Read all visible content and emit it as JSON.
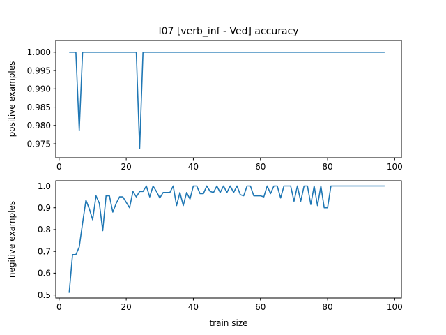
{
  "chart_data": [
    {
      "type": "line",
      "title": "I07 [verb_inf - Ved] accuracy",
      "xlabel": "",
      "ylabel": "positive examples",
      "xlim": [
        -1,
        102
      ],
      "ylim": [
        0.9712,
        1.0032
      ],
      "xticks": [
        0,
        20,
        40,
        60,
        80,
        100
      ],
      "xtick_labels": [
        "0",
        "20",
        "40",
        "60",
        "80",
        "100"
      ],
      "yticks": [
        0.975,
        0.98,
        0.985,
        0.99,
        0.995,
        1.0
      ],
      "ytick_labels": [
        "0.975",
        "0.980",
        "0.985",
        "0.990",
        "0.995",
        "1.000"
      ],
      "grid": false,
      "series": [
        {
          "color": "#1f77b4",
          "x": [
            3,
            4,
            5,
            6,
            7,
            8,
            9,
            10,
            11,
            12,
            13,
            14,
            15,
            16,
            17,
            18,
            19,
            20,
            21,
            22,
            23,
            24,
            25,
            26,
            27,
            28,
            29,
            30,
            40,
            50,
            60,
            70,
            80,
            90,
            97
          ],
          "y": [
            1.0,
            1.0,
            1.0,
            0.9787,
            1.0,
            1.0,
            1.0,
            1.0,
            1.0,
            1.0,
            1.0,
            1.0,
            1.0,
            1.0,
            1.0,
            1.0,
            1.0,
            1.0,
            1.0,
            1.0,
            1.0,
            0.9737,
            1.0,
            1.0,
            1.0,
            1.0,
            1.0,
            1.0,
            1.0,
            1.0,
            1.0,
            1.0,
            1.0,
            1.0,
            1.0
          ]
        }
      ]
    },
    {
      "type": "line",
      "title": "",
      "xlabel": "train size",
      "ylabel": "negitive examples",
      "xlim": [
        -1,
        102
      ],
      "ylim": [
        0.486,
        1.024
      ],
      "xticks": [
        0,
        20,
        40,
        60,
        80,
        100
      ],
      "xtick_labels": [
        "0",
        "20",
        "40",
        "60",
        "80",
        "100"
      ],
      "yticks": [
        0.5,
        0.6,
        0.7,
        0.8,
        0.9,
        1.0
      ],
      "ytick_labels": [
        "0.5",
        "0.6",
        "0.7",
        "0.8",
        "0.9",
        "1.0"
      ],
      "grid": false,
      "series": [
        {
          "color": "#1f77b4",
          "x": [
            3,
            4,
            5,
            6,
            7,
            8,
            9,
            10,
            11,
            12,
            13,
            14,
            15,
            16,
            17,
            18,
            19,
            20,
            21,
            22,
            23,
            24,
            25,
            26,
            27,
            28,
            29,
            30,
            31,
            32,
            33,
            34,
            35,
            36,
            37,
            38,
            39,
            40,
            41,
            42,
            43,
            44,
            45,
            46,
            47,
            48,
            49,
            50,
            51,
            52,
            53,
            54,
            55,
            56,
            57,
            58,
            59,
            60,
            61,
            62,
            63,
            64,
            65,
            66,
            67,
            68,
            69,
            70,
            71,
            72,
            73,
            74,
            75,
            76,
            77,
            78,
            79,
            80,
            81,
            82,
            83,
            97
          ],
          "y": [
            0.51,
            0.685,
            0.685,
            0.72,
            0.83,
            0.935,
            0.895,
            0.845,
            0.955,
            0.92,
            0.795,
            0.955,
            0.955,
            0.88,
            0.92,
            0.95,
            0.95,
            0.925,
            0.9,
            0.975,
            0.95,
            0.975,
            0.975,
            1.0,
            0.95,
            1.0,
            0.975,
            0.945,
            0.97,
            0.97,
            0.97,
            1.0,
            0.91,
            0.97,
            0.91,
            0.97,
            0.94,
            1.0,
            1.0,
            0.965,
            0.965,
            1.0,
            0.975,
            0.97,
            1.0,
            0.97,
            1.0,
            0.97,
            1.0,
            0.97,
            1.0,
            0.96,
            0.955,
            1.0,
            1.0,
            0.955,
            0.955,
            0.955,
            0.95,
            1.0,
            0.965,
            1.0,
            1.0,
            0.945,
            1.0,
            1.0,
            1.0,
            0.93,
            1.0,
            0.93,
            1.0,
            1.0,
            0.915,
            1.0,
            0.91,
            1.0,
            0.9,
            0.9,
            1.0,
            1.0,
            1.0,
            1.0
          ]
        }
      ]
    }
  ]
}
